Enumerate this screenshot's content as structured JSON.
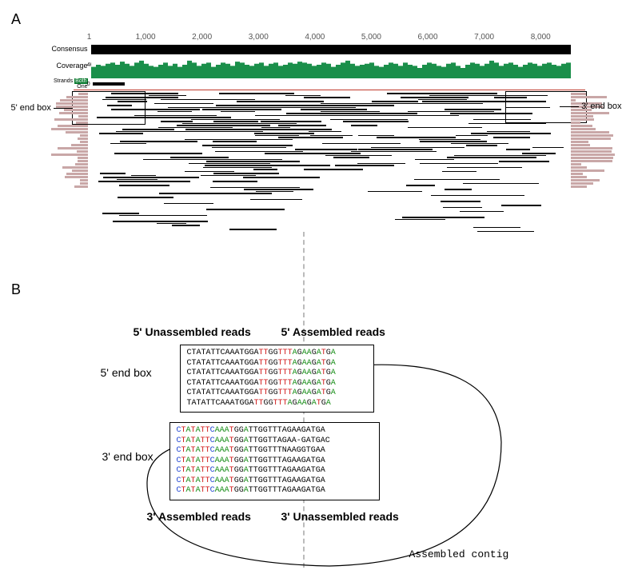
{
  "panelA": {
    "label": "A",
    "axis": {
      "ticks": [
        1,
        1000,
        2000,
        3000,
        4000,
        5000,
        6000,
        7000,
        8000
      ],
      "min": 0,
      "max": 8500
    },
    "consensus_label": "Consensus",
    "coverage": {
      "label": "Coverage",
      "ymax_label": "46",
      "ymin_label": "0",
      "fill_color": "#1a8f4a",
      "values": [
        22,
        26,
        24,
        28,
        30,
        26,
        32,
        28,
        24,
        30,
        34,
        28,
        24,
        22,
        26,
        30,
        24,
        28,
        22,
        26,
        34,
        30,
        24,
        28,
        30,
        22,
        26,
        30,
        28,
        24,
        32,
        30,
        26,
        24,
        28,
        30,
        24,
        28,
        30,
        24,
        26,
        30,
        28,
        32,
        30,
        28,
        24,
        26,
        30,
        28,
        22,
        26,
        30,
        34,
        28,
        24,
        26,
        28,
        30,
        24,
        22,
        26,
        30,
        28,
        24,
        30,
        26,
        24,
        20,
        26,
        30,
        28,
        24,
        22,
        28,
        30,
        24,
        20,
        26,
        30,
        28,
        24,
        28,
        34,
        30,
        24,
        28,
        30,
        26,
        22,
        26,
        30,
        28,
        24,
        28,
        30,
        26,
        24,
        28,
        30
      ]
    },
    "strands": {
      "label": "Strands",
      "both_label": "Both",
      "one_label": "One"
    },
    "endbox5_label": "5' end box",
    "endbox3_label": "3' end box",
    "read_color": "#000000",
    "softclip_color": "#c9a7a7"
  },
  "panelB": {
    "label": "B",
    "title_5un": "5' Unassembled reads",
    "title_5as": "5' Assembled reads",
    "title_3un": "3' Unassembled reads",
    "title_3as": "3' Assembled reads",
    "box5_label": "5' end box",
    "box3_label": "3' end box",
    "contig_label": "Assembled contig",
    "box5_rows": [
      {
        "L": "CTATATTCAAATGGA",
        "R": "TTGGTTTAGAAGATGA"
      },
      {
        "L": "CTATATTCAAATGGA",
        "R": "TTGGTTTAGAAGATGA"
      },
      {
        "L": "CTATATTCAAATGGA",
        "R": "TTGGTTTAGAAGATGA"
      },
      {
        "L": "CTATATTCAAATGGA",
        "R": "TTGGTTTAGAAGATGA"
      },
      {
        "L": "CTATATTCAAATGGA",
        "R": "TTGGTTTAGAAGATGA"
      },
      {
        "L": "TATATTCAAATGGA",
        "R": "TTGGTTTAGAAGATGA"
      }
    ],
    "box3_rows": [
      {
        "L": "CTATATTCAAATGGA",
        "R": "TTGGTTTAGAAGATGA"
      },
      {
        "L": "CTATATTCAAATGGA",
        "R": "TTGGTTAGAA-GATGAC"
      },
      {
        "L": "CTATATTCAAATGGA",
        "R": "TTGGTTTNAAGGTGAA"
      },
      {
        "L": "CTATATTCAAATGGA",
        "R": "TTGGTTTAGAAGATGA"
      },
      {
        "L": "CTATATTCAAATGGA",
        "R": "TTGGTTTAGAAGATGA"
      },
      {
        "L": "CTATATTCAAATGGA",
        "R": "TTGGTTTAGAAGATGA"
      },
      {
        "L": "CTATATTCAAATGGA",
        "R": "TTGGTTTAGAAGATGA"
      }
    ],
    "box5_left_plain": true,
    "box5_right_colored": true,
    "box3_left_colored": true,
    "box3_right_plain": true
  }
}
